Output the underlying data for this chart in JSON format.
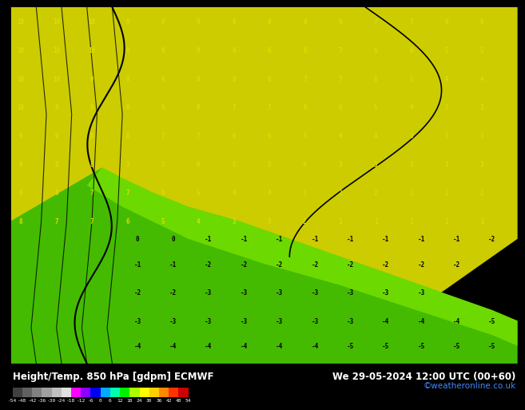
{
  "title_left": "Height/Temp. 850 hPa [gdpm] ECMWF",
  "title_right": "We 29-05-2024 12:00 UTC (00+60)",
  "credit": "©weatheronline.co.uk",
  "colorbar_values": [
    -54,
    -48,
    -42,
    -36,
    -30,
    -24,
    -18,
    -12,
    -6,
    0,
    6,
    12,
    18,
    24,
    30,
    36,
    42,
    48,
    54
  ],
  "colorbar_colors": [
    "#3d3d3d",
    "#5a5a5a",
    "#787878",
    "#969696",
    "#b4b4b4",
    "#d2d2d2",
    "#ff00ff",
    "#8b00ff",
    "#0000ff",
    "#00bfff",
    "#00ff80",
    "#00ff00",
    "#80ff00",
    "#ffff00",
    "#ffd700",
    "#ffa500",
    "#ff4500",
    "#ff0000",
    "#8b0000"
  ],
  "bg_color": "#f5f5dc",
  "map_bg": "#ffffd0",
  "bottom_bar_color": "#1a1a1a",
  "bottom_text_color": "#ffffff",
  "number_color_yellow": "#cccc00",
  "number_color_black": "#000000",
  "green_region_color": "#00cc00",
  "yellow_region_color": "#cccc00",
  "dark_yellow_region": "#aaaa00",
  "fig_width": 6.34,
  "fig_height": 4.9
}
